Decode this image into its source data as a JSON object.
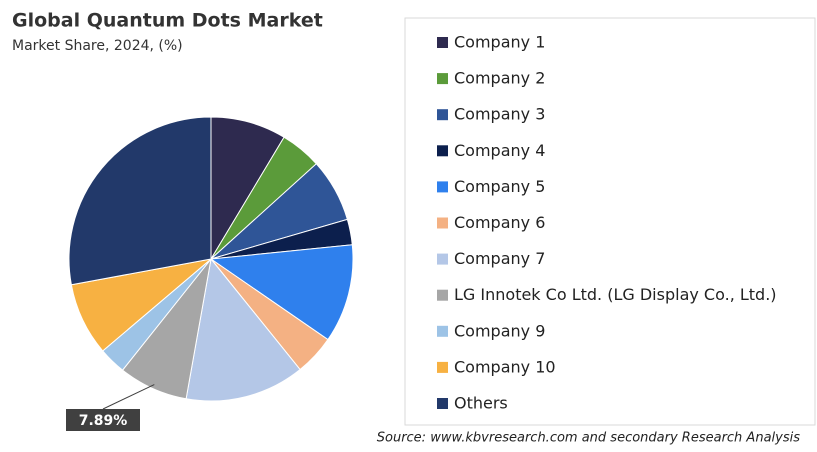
{
  "chart_data": {
    "type": "pie",
    "title": "Global Quantum Dots Market",
    "subtitle": "Market Share, 2024, (%)",
    "source": "Source: www.kbvresearch.com and secondary Research Analysis",
    "categories": [
      "Company 1",
      "Company 2",
      "Company 3",
      "Company 4",
      "Company 5",
      "Company 6",
      "Company 7",
      "LG Innotek Co Ltd. (LG Display Co., Ltd.)",
      "Company 9",
      "Company 10",
      "Others"
    ],
    "values": [
      8.6,
      4.7,
      7.2,
      2.9,
      11.2,
      4.6,
      13.6,
      7.89,
      3.1,
      8.3,
      27.9
    ],
    "value_labels": [
      null,
      null,
      null,
      null,
      null,
      null,
      null,
      "7.89%",
      null,
      null,
      null
    ],
    "colors": [
      "#2e2a4f",
      "#5b9b3a",
      "#2f5597",
      "#0c1f4d",
      "#2f80ed",
      "#f4b183",
      "#b4c7e7",
      "#a6a6a6",
      "#9dc3e6",
      "#f7b142",
      "#22396a"
    ],
    "legend": "right"
  }
}
